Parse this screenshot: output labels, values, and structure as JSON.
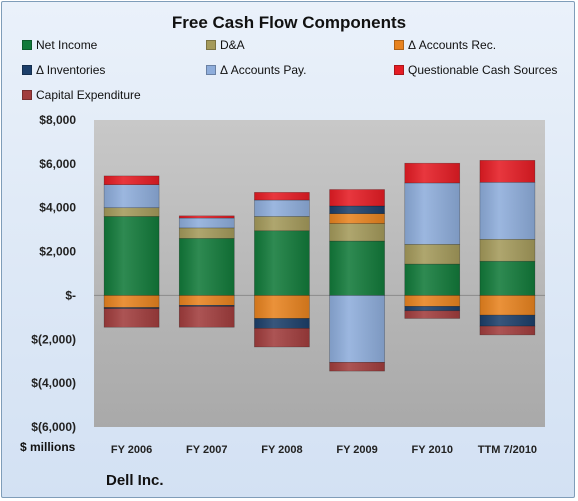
{
  "chart_data": {
    "type": "bar",
    "title": "Free Cash Flow Components",
    "ylabel": "$ millions",
    "ylim": [
      -6000,
      8000
    ],
    "yticks": [
      8000,
      6000,
      4000,
      2000,
      0,
      -2000,
      -4000,
      -6000
    ],
    "ytick_labels": [
      "$8,000",
      "$6,000",
      "$4,000",
      "$2,000",
      "$-",
      "$(2,000)",
      "$(4,000)",
      "$(6,000)"
    ],
    "categories": [
      "FY 2006",
      "FY 2007",
      "FY 2008",
      "FY 2009",
      "FY 2010",
      "TTM 7/2010"
    ],
    "series": [
      {
        "name": "Net Income",
        "color": "#127a3a",
        "values": [
          3600,
          2600,
          2950,
          2480,
          1430,
          1560
        ]
      },
      {
        "name": "D&A",
        "color": "#a49a5b",
        "values": [
          400,
          480,
          650,
          800,
          900,
          1000
        ]
      },
      {
        "name": "Δ Accounts Rec.",
        "color": "#e8831f",
        "values": [
          -550,
          -450,
          -1050,
          450,
          -500,
          -900
        ]
      },
      {
        "name": "Δ Inventories",
        "color": "#1c3f6a",
        "values": [
          -50,
          -50,
          -450,
          350,
          -200,
          -500
        ]
      },
      {
        "name": "Δ Accounts Pay.",
        "color": "#8eaddb",
        "values": [
          1050,
          450,
          750,
          -3050,
          2800,
          2600
        ]
      },
      {
        "name": "Questionable Cash Sources",
        "color": "#e51c24",
        "values": [
          400,
          100,
          350,
          750,
          900,
          1000
        ]
      },
      {
        "name": "Capital Expenditure",
        "color": "#a13d3d",
        "values": [
          -850,
          -950,
          -850,
          -400,
          -350,
          -400
        ]
      }
    ],
    "grid": false,
    "legend_position": "top"
  },
  "footer": {
    "company": "Dell Inc."
  }
}
